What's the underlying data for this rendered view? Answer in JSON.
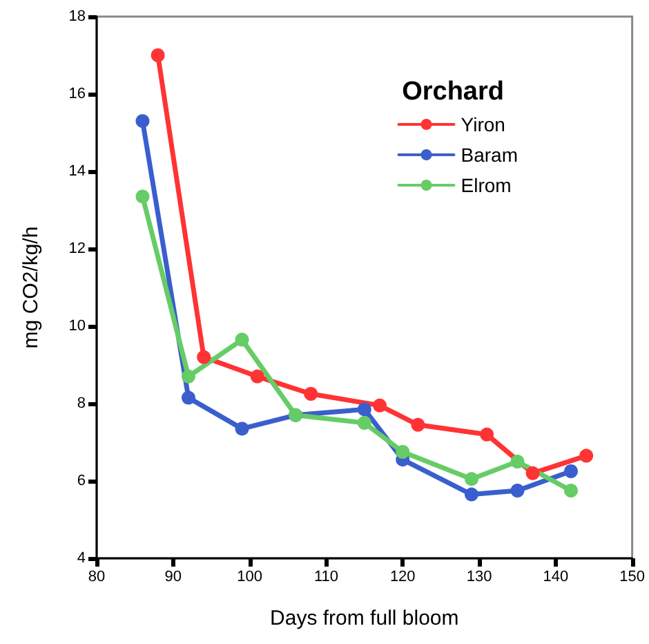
{
  "chart_data": {
    "type": "line",
    "xlabel": "Days from full bloom",
    "ylabel": "mg CO2/kg/h",
    "legend_title": "Orchard",
    "legend": "top right",
    "marker": "circle",
    "line_style": "solid",
    "grid": false,
    "xlim": [
      80,
      150
    ],
    "xticks": [
      80,
      90,
      100,
      110,
      120,
      130,
      140,
      150
    ],
    "ylim": [
      4,
      18
    ],
    "yticks": [
      4,
      6,
      8,
      10,
      12,
      14,
      16,
      18
    ],
    "series": [
      {
        "name": "Yiron",
        "color": "#ff3333",
        "x": [
          88,
          94,
          101,
          108,
          117,
          122,
          131,
          137,
          144
        ],
        "values": [
          17.0,
          9.2,
          8.7,
          8.25,
          7.95,
          7.45,
          7.2,
          6.2,
          6.65
        ]
      },
      {
        "name": "Baram",
        "color": "#3a5fcd",
        "x": [
          86,
          92,
          99,
          106,
          115,
          120,
          129,
          135,
          142
        ],
        "values": [
          15.3,
          8.15,
          7.35,
          7.7,
          7.85,
          6.55,
          5.65,
          5.75,
          6.25
        ]
      },
      {
        "name": "Elrom",
        "color": "#66cc66",
        "x": [
          86,
          92,
          99,
          106,
          115,
          120,
          129,
          135,
          142
        ],
        "values": [
          13.35,
          8.7,
          9.65,
          7.7,
          7.5,
          6.75,
          6.05,
          6.5,
          5.75
        ]
      }
    ]
  }
}
